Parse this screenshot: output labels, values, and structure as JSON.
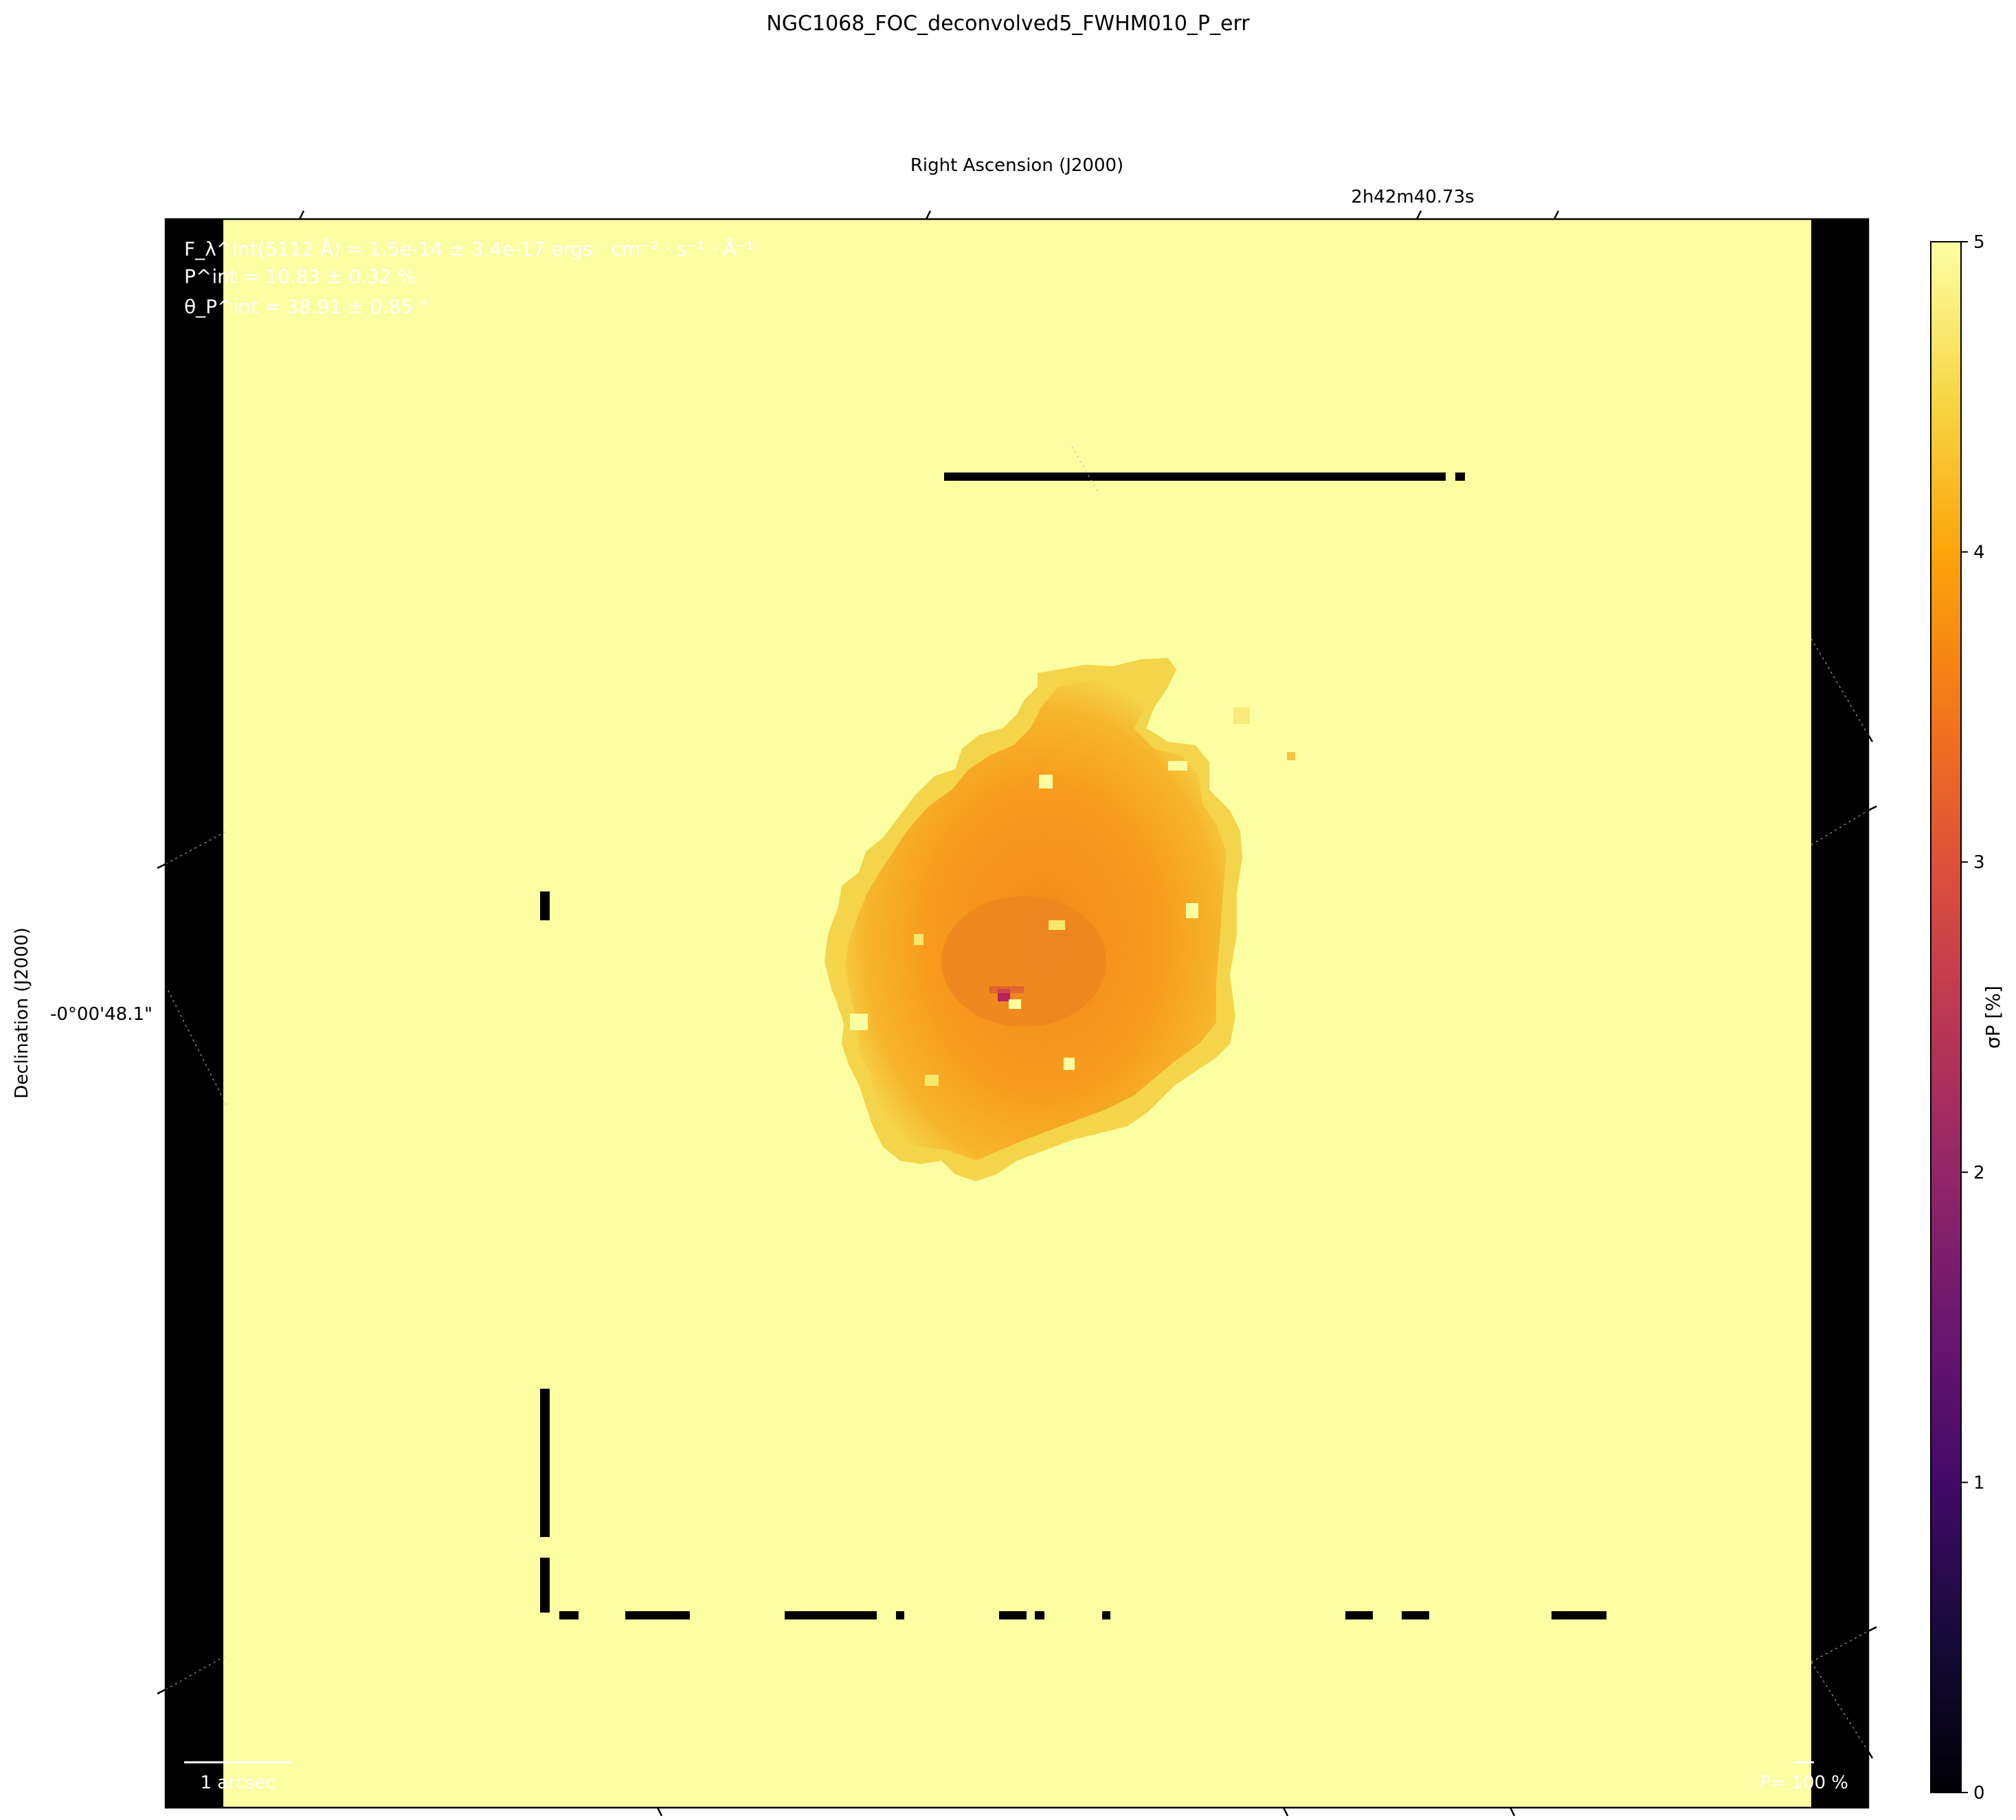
{
  "title": "NGC1068_FOC_deconvolved5_FWHM010_P_err",
  "chart_data": {
    "type": "heatmap",
    "title": "NGC1068_FOC_deconvolved5_FWHM010_P_err",
    "xlabel": "Right Ascension (J2000)",
    "ylabel": "Declination (J2000)",
    "x_tick_labels": [
      "2h42m40.73s"
    ],
    "y_tick_labels": [
      "-0°00'48.1\""
    ],
    "colorbar": {
      "label": "σP [%]",
      "range": [
        0,
        5
      ],
      "ticks": [
        0,
        1,
        2,
        3,
        4,
        5
      ],
      "colormap": "inferno"
    },
    "background_value": 5,
    "source_region": {
      "description_values": {
        "outer": 4.6,
        "inner": 4.1,
        "core": 3.0,
        "center": 2.5
      }
    },
    "annotations": {
      "flux": "F_λ^int(5112 Å) = 1.5e-14 ± 3.4e-17 ergs · cm⁻² · s⁻¹ · Å⁻¹",
      "pol_degree": "P^int = 10.83 ± 0.32 %",
      "pol_angle": "θ_P^int = 38.91 ± 0.85 °",
      "scalebar": "1 arcsec",
      "vector_scale": "P= 100 %"
    }
  },
  "colors": {
    "background": "#fbfea1",
    "outer": "#f4d94a",
    "inner": "#f89a1c",
    "core": "#d8573a",
    "center": "#b3245a",
    "blank": "#000000"
  }
}
